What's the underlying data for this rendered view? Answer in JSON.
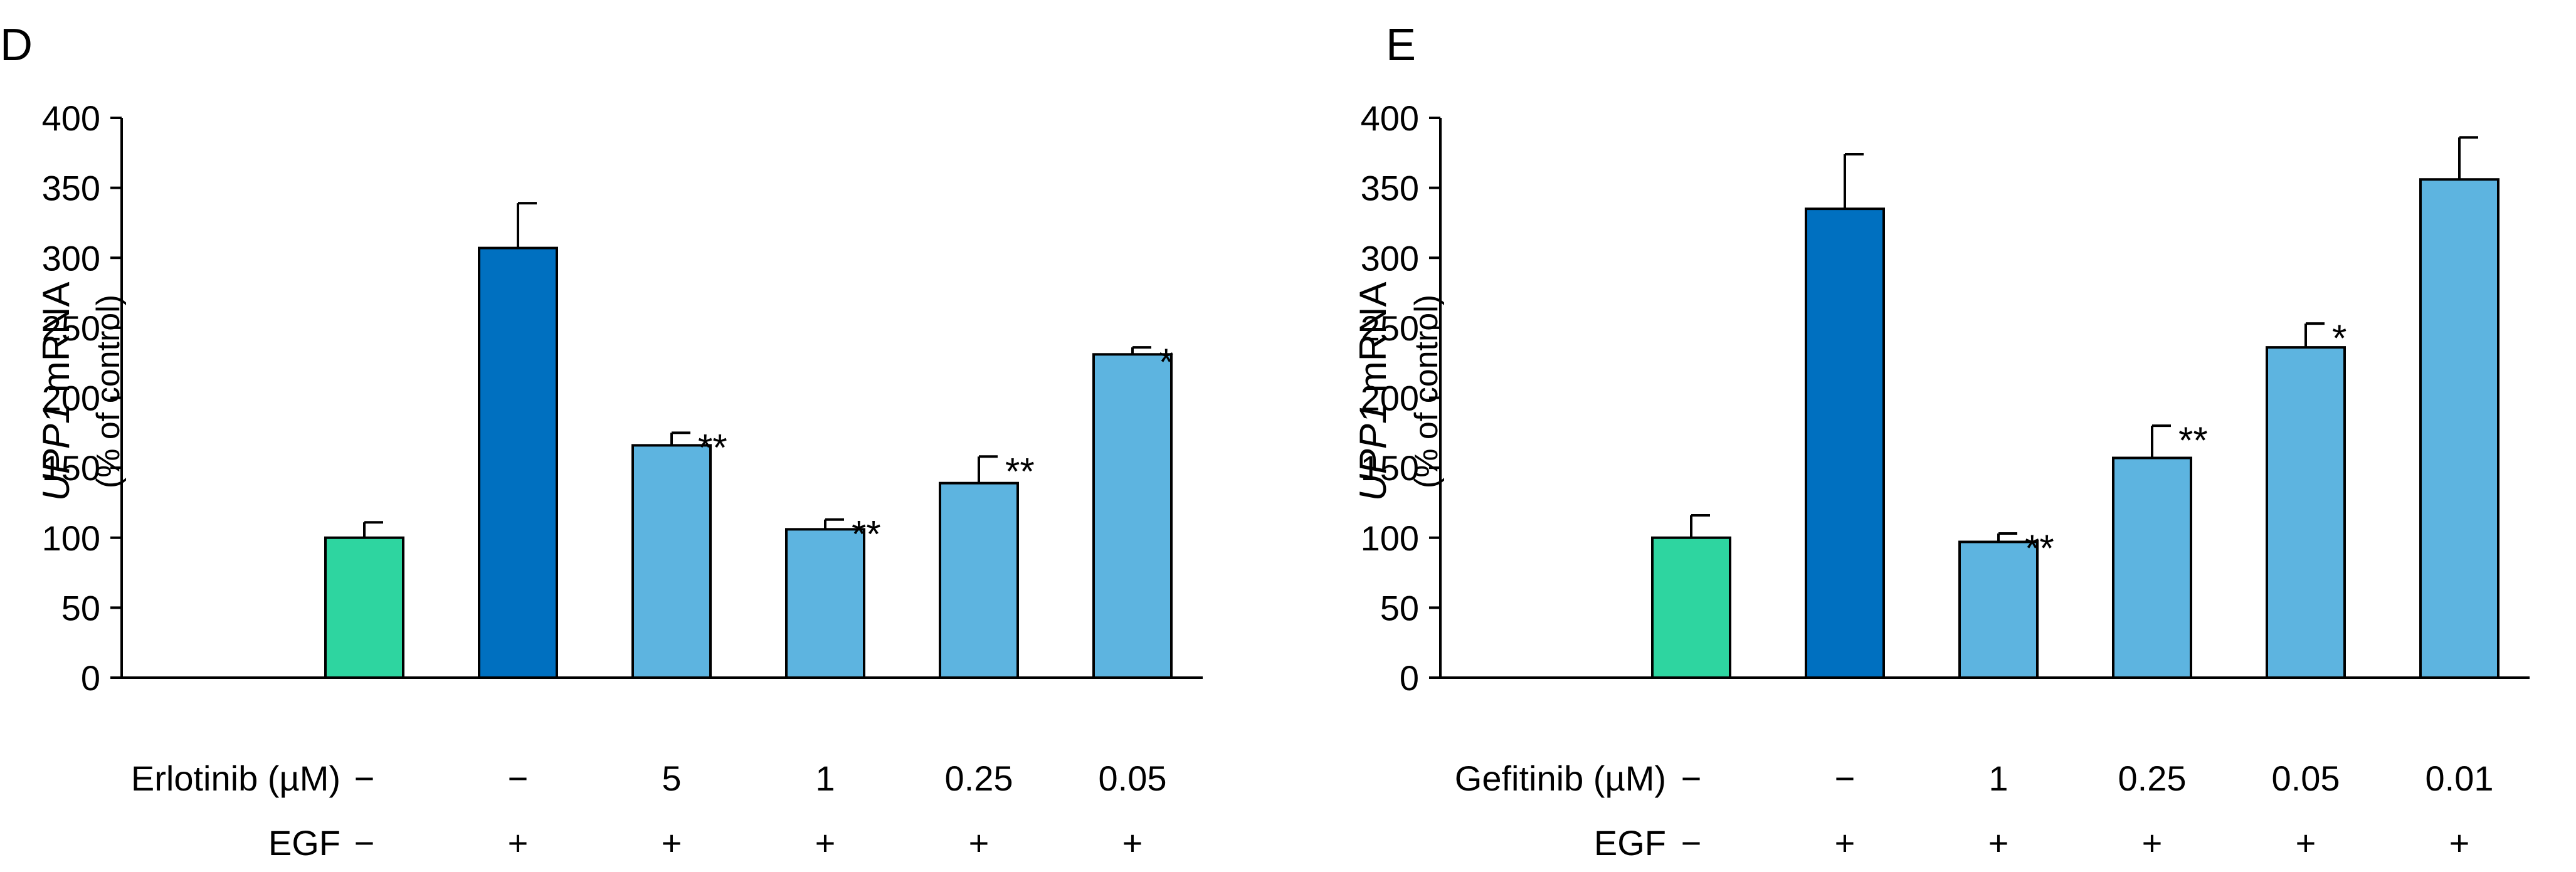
{
  "chart_data": [
    {
      "panel": "D",
      "type": "bar",
      "ylabel_gene": "UPP1",
      "ylabel_rest": " mRNA",
      "ylabel_sub": "(% of control)",
      "ylim": [
        0,
        400
      ],
      "yticks": [
        "0",
        "50",
        "100",
        "150",
        "200",
        "250",
        "300",
        "350",
        "400"
      ],
      "values": [
        100,
        307,
        166,
        106,
        139,
        231
      ],
      "errors": [
        11,
        32,
        9,
        7,
        19,
        5
      ],
      "significance": [
        "",
        "",
        "**",
        "**",
        "**",
        "*"
      ],
      "colors": [
        "#2ed5a0",
        "#0070c0",
        "#5db4e0",
        "#5db4e0",
        "#5db4e0",
        "#5db4e0"
      ],
      "row1_label": "Erlotinib (µM)",
      "row1": [
        "−",
        "−",
        "5",
        "1",
        "0.25",
        "0.05"
      ],
      "row2_label": "EGF",
      "row2": [
        "−",
        "+",
        "+",
        "+",
        "+",
        "+"
      ]
    },
    {
      "panel": "E",
      "type": "bar",
      "ylabel_gene": "UPP1",
      "ylabel_rest": " mRNA",
      "ylabel_sub": "(% of control)",
      "ylim": [
        0,
        400
      ],
      "yticks": [
        "0",
        "50",
        "100",
        "150",
        "200",
        "250",
        "300",
        "350",
        "400"
      ],
      "values": [
        100,
        335,
        97,
        157,
        236,
        356
      ],
      "errors": [
        16,
        39,
        6,
        23,
        17,
        30
      ],
      "significance": [
        "",
        "",
        "**",
        "**",
        "*",
        ""
      ],
      "colors": [
        "#2ed5a0",
        "#0070c0",
        "#5db4e0",
        "#5db4e0",
        "#5db4e0",
        "#5db4e0"
      ],
      "row1_label": "Gefitinib (µM)",
      "row1": [
        "−",
        "−",
        "1",
        "0.25",
        "0.05",
        "0.01"
      ],
      "row2_label": "EGF",
      "row2": [
        "−",
        "+",
        "+",
        "+",
        "+",
        "+"
      ]
    }
  ]
}
